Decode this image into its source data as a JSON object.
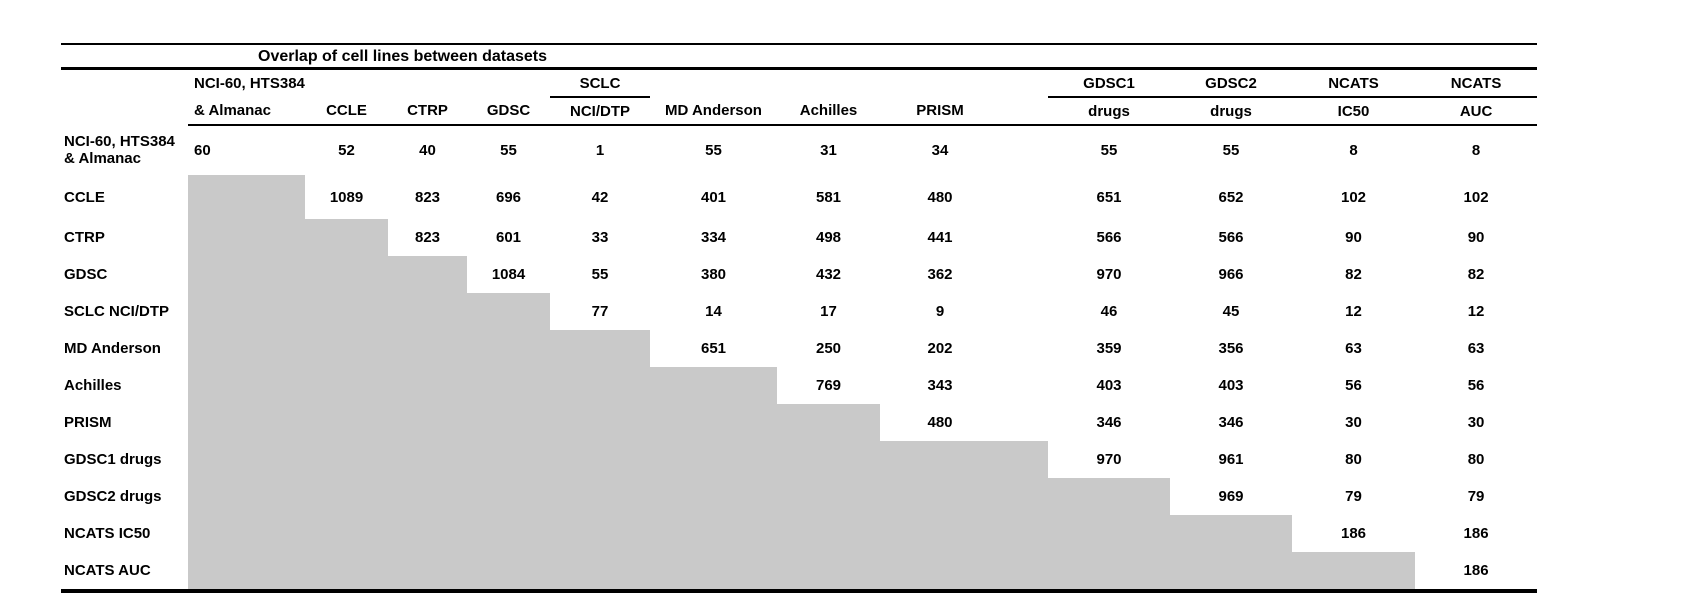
{
  "colors": {
    "shade": "#c9c9c9",
    "rule": "#000000",
    "text": "#000000"
  },
  "chart_data": {
    "type": "table",
    "title": "Overlap of cell lines between datasets",
    "shaded_lower_triangle": true,
    "columns": [
      {
        "top": "NCI-60, HTS384",
        "bottom": "& Almanac",
        "underline": false
      },
      {
        "top": "",
        "bottom": "CCLE",
        "underline": false
      },
      {
        "top": "",
        "bottom": "CTRP",
        "underline": false
      },
      {
        "top": "",
        "bottom": "GDSC",
        "underline": false
      },
      {
        "top": "SCLC",
        "bottom": "NCI/DTP",
        "underline": true
      },
      {
        "top": "",
        "bottom": "MD Anderson",
        "underline": false
      },
      {
        "top": "",
        "bottom": "Achilles",
        "underline": false
      },
      {
        "top": "",
        "bottom": "PRISM",
        "underline": false
      },
      {
        "top": "GDSC1",
        "bottom": "drugs",
        "underline": true
      },
      {
        "top": "GDSC2",
        "bottom": "drugs",
        "underline": true
      },
      {
        "top": "NCATS",
        "bottom": "IC50",
        "underline": true
      },
      {
        "top": "NCATS",
        "bottom": "AUC",
        "underline": true
      }
    ],
    "rows": [
      {
        "label_lines": [
          "NCI-60, HTS384",
          "& Almanac"
        ],
        "values": [
          60,
          52,
          40,
          55,
          1,
          55,
          31,
          34,
          55,
          55,
          8,
          8
        ]
      },
      {
        "label_lines": [
          "CCLE"
        ],
        "values": [
          1089,
          823,
          696,
          42,
          401,
          581,
          480,
          651,
          652,
          102,
          102
        ]
      },
      {
        "label_lines": [
          "CTRP"
        ],
        "values": [
          823,
          601,
          33,
          334,
          498,
          441,
          566,
          566,
          90,
          90
        ]
      },
      {
        "label_lines": [
          "GDSC"
        ],
        "values": [
          1084,
          55,
          380,
          432,
          362,
          970,
          966,
          82,
          82
        ]
      },
      {
        "label_lines": [
          "SCLC NCI/DTP"
        ],
        "values": [
          77,
          14,
          17,
          9,
          46,
          45,
          12,
          12
        ]
      },
      {
        "label_lines": [
          "MD Anderson"
        ],
        "values": [
          651,
          250,
          202,
          359,
          356,
          63,
          63
        ]
      },
      {
        "label_lines": [
          "Achilles"
        ],
        "values": [
          769,
          343,
          403,
          403,
          56,
          56
        ]
      },
      {
        "label_lines": [
          "PRISM"
        ],
        "values": [
          480,
          346,
          346,
          30,
          30
        ]
      },
      {
        "label_lines": [
          "GDSC1 drugs"
        ],
        "values": [
          970,
          961,
          80,
          80
        ]
      },
      {
        "label_lines": [
          "GDSC2 drugs"
        ],
        "values": [
          969,
          79,
          79
        ]
      },
      {
        "label_lines": [
          "NCATS IC50"
        ],
        "values": [
          186,
          186
        ]
      },
      {
        "label_lines": [
          "NCATS AUC"
        ],
        "values": [
          186
        ]
      }
    ]
  }
}
